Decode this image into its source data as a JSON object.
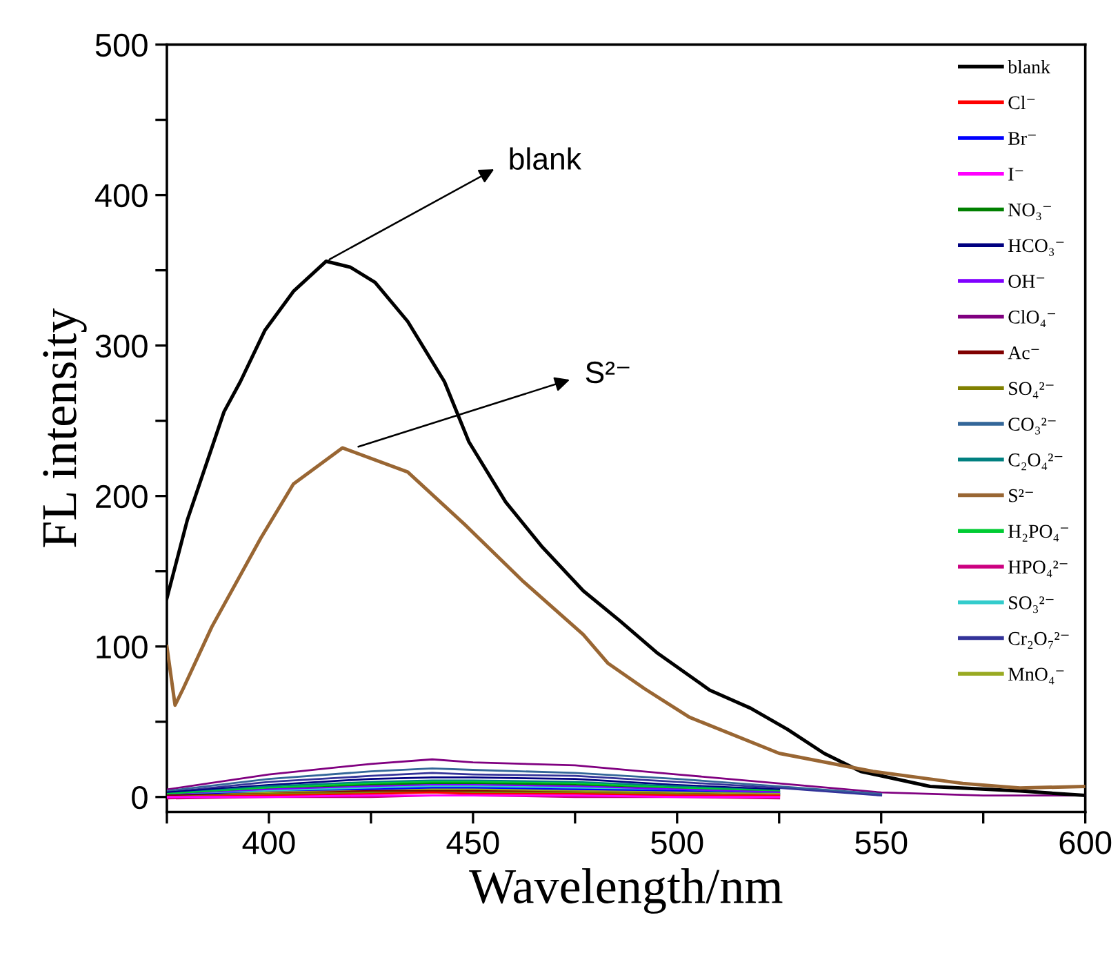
{
  "chart_data": {
    "type": "line",
    "xlabel": "Wavelength/nm",
    "ylabel": "FL intensity",
    "xlim": [
      375,
      600
    ],
    "ylim": [
      -10,
      500
    ],
    "xticks": [
      {
        "value": 375,
        "label": null
      },
      400,
      {
        "value": 425,
        "label": null
      },
      450,
      {
        "value": 475,
        "label": null
      },
      500,
      {
        "value": 525,
        "label": null
      },
      550,
      {
        "value": 575,
        "label": null
      },
      600
    ],
    "yticks": [
      0,
      {
        "value": 50,
        "label": null
      },
      100,
      {
        "value": 150,
        "label": null
      },
      200,
      {
        "value": 250,
        "label": null
      },
      300,
      {
        "value": 350,
        "label": null
      },
      400,
      {
        "value": 450,
        "label": null
      },
      500
    ],
    "grid": false,
    "legend": "top right",
    "line_style": "solid",
    "marker": "none",
    "x": [
      375,
      400,
      425,
      440,
      450,
      475,
      500,
      525,
      550,
      575,
      600
    ],
    "series": [
      {
        "name": "blank",
        "color": "#000000",
        "x": [
          375,
          380,
          389,
          393,
          399,
          406,
          414,
          420,
          426,
          434,
          443,
          449,
          458,
          467,
          477,
          486,
          495,
          508,
          518,
          527,
          536,
          545,
          562,
          584,
          600
        ],
        "values": [
          132,
          184,
          256,
          276,
          310,
          336,
          356,
          352,
          342,
          316,
          276,
          236,
          196,
          166,
          137,
          117,
          96,
          71,
          59,
          45,
          29,
          17,
          7,
          4,
          1
        ]
      },
      {
        "name": "Cl⁻",
        "color": "#ff0000",
        "values": [
          0,
          1,
          2,
          3,
          2,
          2,
          1,
          1,
          null,
          null,
          null
        ]
      },
      {
        "name": "Br⁻",
        "color": "#0000ff",
        "values": [
          1,
          3,
          5,
          6,
          6,
          5,
          4,
          2,
          null,
          null,
          null
        ]
      },
      {
        "name": "I⁻",
        "color": "#ff00ff",
        "values": [
          0,
          0,
          1,
          1,
          1,
          1,
          0,
          0,
          null,
          null,
          null
        ]
      },
      {
        "name": "NO₃⁻",
        "color": "#008000",
        "values": [
          1,
          5,
          8,
          9,
          9,
          8,
          5,
          3,
          null,
          null,
          null
        ]
      },
      {
        "name": "HCO₃⁻",
        "color": "#000080",
        "values": [
          3,
          8,
          12,
          13,
          13,
          12,
          8,
          5,
          null,
          null,
          null
        ]
      },
      {
        "name": "OH⁻",
        "color": "#8000ff",
        "values": [
          1,
          5,
          7,
          8,
          8,
          7,
          5,
          3,
          null,
          null,
          null
        ]
      },
      {
        "name": "ClO₄⁻",
        "color": "#800080",
        "values": [
          5,
          15,
          22,
          25,
          23,
          21,
          15,
          9,
          3,
          1,
          1
        ]
      },
      {
        "name": "Ac⁻",
        "color": "#800000",
        "values": [
          1,
          2,
          4,
          4,
          4,
          3,
          2,
          1,
          null,
          null,
          null
        ]
      },
      {
        "name": "SO₄²⁻",
        "color": "#808000",
        "values": [
          0,
          2,
          3,
          3,
          3,
          3,
          2,
          1,
          null,
          null,
          null
        ]
      },
      {
        "name": "CO₃²⁻",
        "color": "#336699",
        "values": [
          4,
          12,
          17,
          19,
          18,
          16,
          12,
          7,
          2,
          null,
          null
        ]
      },
      {
        "name": "C₂O₄²⁻",
        "color": "#008080",
        "values": [
          2,
          7,
          10,
          11,
          11,
          10,
          7,
          4,
          null,
          null,
          null
        ]
      },
      {
        "name": "S²⁻",
        "color": "#996633",
        "x": [
          375,
          377,
          379,
          386,
          398,
          406,
          418,
          434,
          448,
          462,
          477,
          483,
          492,
          503,
          525,
          548,
          570,
          584,
          600
        ],
        "values": [
          100,
          61,
          72,
          113,
          172,
          208,
          232,
          216,
          181,
          144,
          108,
          89,
          72,
          53,
          29,
          17,
          9,
          6,
          7
        ]
      },
      {
        "name": "H₂PO₄⁻",
        "color": "#00cc33",
        "values": [
          2,
          6,
          9,
          10,
          10,
          9,
          6,
          4,
          null,
          null,
          null
        ]
      },
      {
        "name": "HPO₄²⁻",
        "color": "#cc0080",
        "values": [
          -1,
          0,
          0,
          1,
          1,
          0,
          0,
          -1,
          null,
          null,
          null
        ]
      },
      {
        "name": "SO₃²⁻",
        "color": "#33cccc",
        "values": [
          1,
          4,
          6,
          7,
          7,
          6,
          4,
          2,
          null,
          null,
          null
        ]
      },
      {
        "name": "Cr₂O₇²⁻",
        "color": "#333399",
        "values": [
          3,
          10,
          14,
          16,
          15,
          14,
          10,
          6,
          1,
          null,
          null
        ]
      },
      {
        "name": "MnO₄⁻",
        "color": "#99aa22",
        "values": [
          0,
          3,
          4,
          5,
          5,
          4,
          3,
          2,
          null,
          null,
          null
        ]
      }
    ],
    "annotations": [
      {
        "text": "blank",
        "x": 414,
        "y": 356
      },
      {
        "text": "S²⁻",
        "x": 421,
        "y": 232
      }
    ]
  }
}
